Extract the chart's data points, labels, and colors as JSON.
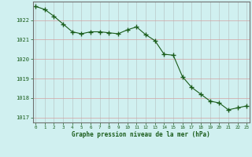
{
  "x": [
    0,
    1,
    2,
    3,
    4,
    5,
    6,
    7,
    8,
    9,
    10,
    11,
    12,
    13,
    14,
    15,
    16,
    17,
    18,
    19,
    20,
    21,
    22,
    23
  ],
  "y": [
    1022.7,
    1022.55,
    1022.2,
    1021.8,
    1021.4,
    1021.3,
    1021.4,
    1021.4,
    1021.35,
    1021.3,
    1021.5,
    1021.65,
    1021.25,
    1020.95,
    1020.25,
    1020.2,
    1019.1,
    1018.55,
    1018.2,
    1017.85,
    1017.75,
    1017.4,
    1017.5,
    1017.6
  ],
  "background_color": "#d0f0f0",
  "line_color": "#1a5c1a",
  "marker_color": "#1a5c1a",
  "grid_color_major": "#c0a0a0",
  "grid_color_minor": "#c0c0c0",
  "tick_label_color": "#1a5c1a",
  "xlabel": "Graphe pression niveau de la mer (hPa)",
  "xlabel_color": "#1a5c1a",
  "yticks": [
    1017,
    1018,
    1019,
    1020,
    1021,
    1022
  ],
  "xticks": [
    0,
    1,
    2,
    3,
    4,
    5,
    6,
    7,
    8,
    9,
    10,
    11,
    12,
    13,
    14,
    15,
    16,
    17,
    18,
    19,
    20,
    21,
    22,
    23
  ],
  "ylim": [
    1016.75,
    1022.95
  ],
  "xlim": [
    -0.3,
    23.3
  ]
}
